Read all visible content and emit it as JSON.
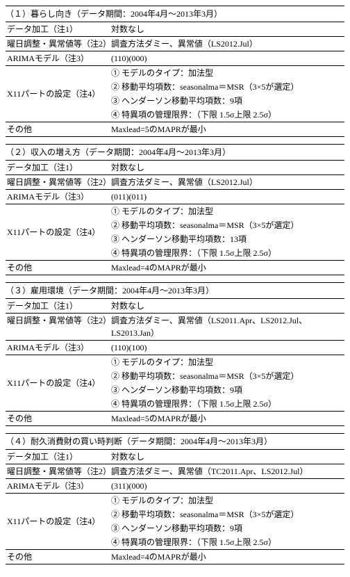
{
  "sections": [
    {
      "header": "（１）暮らし向き（データ期間：2004年4月～2013年3月）",
      "data_processing_label": "データ加工（注1）",
      "data_processing_value": "対数なし",
      "dow_label": "曜日調整・異常値等（注2）",
      "dow_value": "調査方法ダミー、異常値（LS2012.Jul）",
      "arima_label": "ARIMAモデル（注3）",
      "arima_value": "(110)(000)",
      "x11_label": "X11パートの設定（注4）",
      "x11_1": "① モデルのタイプ：加法型",
      "x11_2": "② 移動平均項数：seasonalma＝MSR（3×5が選定）",
      "x11_3": "③ ヘンダーソン移動平均項数：9項",
      "x11_4": "④ 特異項の管理限界：（下限 1.5σ上限 2.5σ）",
      "other_label": "その他",
      "other_value": "Maxlead=5のMAPRが最小"
    },
    {
      "header": "（２）収入の増え方（データ期間：2004年4月～2013年3月）",
      "data_processing_label": "データ加工（注1）",
      "data_processing_value": "対数なし",
      "dow_label": "曜日調整・異常値等（注2）",
      "dow_value": "調査方法ダミー、異常値（LS2012.Jul）",
      "arima_label": "ARIMAモデル（注3）",
      "arima_value": "(011)(011)",
      "x11_label": "X11パートの設定（注4）",
      "x11_1": "① モデルのタイプ：加法型",
      "x11_2": "② 移動平均項数：seasonalma＝MSR（3×5が選定）",
      "x11_3": "③ ヘンダーソン移動平均項数：13項",
      "x11_4": "④ 特異項の管理限界：（下限 1.5σ上限 2.5σ）",
      "other_label": "その他",
      "other_value": "Maxlead=4のMAPRが最小"
    },
    {
      "header": "（３）雇用環境（データ期間：2004年4月～2013年3月）",
      "data_processing_label": "データ加工（注1）",
      "data_processing_value": "対数なし",
      "dow_label": "曜日調整・異常値等（注2）",
      "dow_value": "調査方法ダミー、異常値（LS2011.Apr、LS2012.Jul、LS2013.Jan）",
      "arima_label": "ARIMAモデル（注3）",
      "arima_value": "(110)(100)",
      "x11_label": "X11パートの設定（注4）",
      "x11_1": "① モデルのタイプ：加法型",
      "x11_2": "② 移動平均項数：seasonalma＝MSR（3×5が選定）",
      "x11_3": "③ ヘンダーソン移動平均項数：9項",
      "x11_4": "④ 特異項の管理限界：（下限 1.5σ上限 2.5σ）",
      "other_label": "その他",
      "other_value": "Maxlead=5のMAPRが最小"
    },
    {
      "header": "（４）耐久消費財の買い時判断（データ期間：2004年4月～2013年3月）",
      "data_processing_label": "データ加工（注1）",
      "data_processing_value": "対数なし",
      "dow_label": "曜日調整・異常値等（注2）",
      "dow_value": "調査方法ダミー、異常値（TC2011.Apr、LS2012.Jul）",
      "arima_label": "ARIMAモデル（注3）",
      "arima_value": "(311)(000)",
      "x11_label": "X11パートの設定（注4）",
      "x11_1": "① モデルのタイプ：加法型",
      "x11_2": "② 移動平均項数：seasonalma＝MSR（3×5が選定）",
      "x11_3": "③ ヘンダーソン移動平均項数：9項",
      "x11_4": "④ 特異項の管理限界：（下限 1.5σ上限 2.5σ）",
      "other_label": "その他",
      "other_value": "Maxlead=4のMAPRが最小"
    }
  ]
}
